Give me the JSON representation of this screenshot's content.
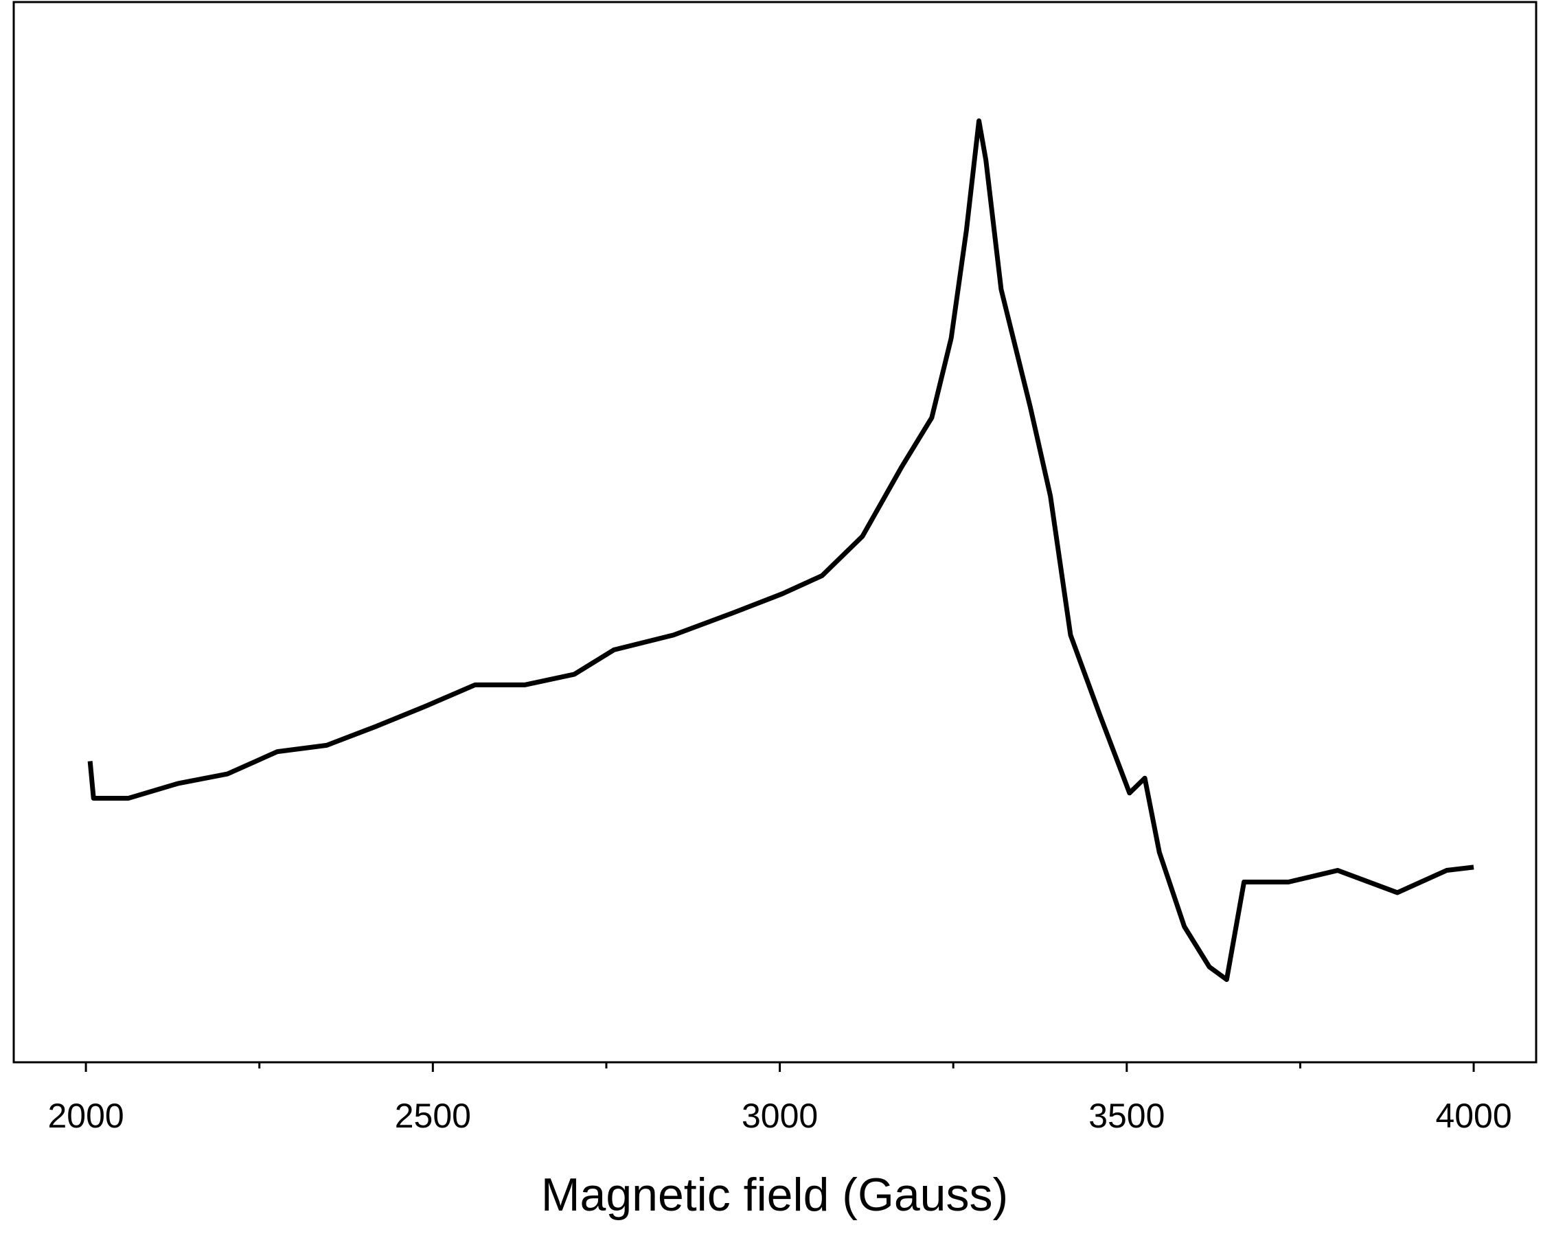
{
  "chart_data": {
    "type": "line",
    "xlabel": "Magnetic field (Gauss)",
    "x": [
      2006,
      2011,
      2061,
      2133,
      2204,
      2276,
      2347,
      2419,
      2490,
      2561,
      2633,
      2704,
      2761,
      2847,
      2933,
      3004,
      3061,
      3119,
      3176,
      3219,
      3247,
      3269,
      3287,
      3297,
      3319,
      3361,
      3390,
      3419,
      3461,
      3504,
      3526,
      3547,
      3583,
      3619,
      3644,
      3669,
      3733,
      3804,
      3890,
      3961,
      4000
    ],
    "series": [
      {
        "color": "#000000",
        "values": [
          28.4,
          24.9,
          24.9,
          26.3,
          27.2,
          29.3,
          29.9,
          31.7,
          33.6,
          35.6,
          35.6,
          36.6,
          38.9,
          40.3,
          42.4,
          44.2,
          45.9,
          49.6,
          56.2,
          60.8,
          68.3,
          78.5,
          88.8,
          85.1,
          72.9,
          61.8,
          53.4,
          40.3,
          32.8,
          25.4,
          26.8,
          19.8,
          12.8,
          9.0,
          7.8,
          17.0,
          17.0,
          18.1,
          16.0,
          18.1,
          18.4
        ]
      }
    ],
    "xlim": [
      1896,
      4090
    ],
    "xticks": [
      2000,
      2500,
      3000,
      3500,
      4000
    ],
    "xminorticks": [
      2250,
      2750,
      3250,
      3750
    ],
    "ylim": [
      0,
      100
    ]
  }
}
